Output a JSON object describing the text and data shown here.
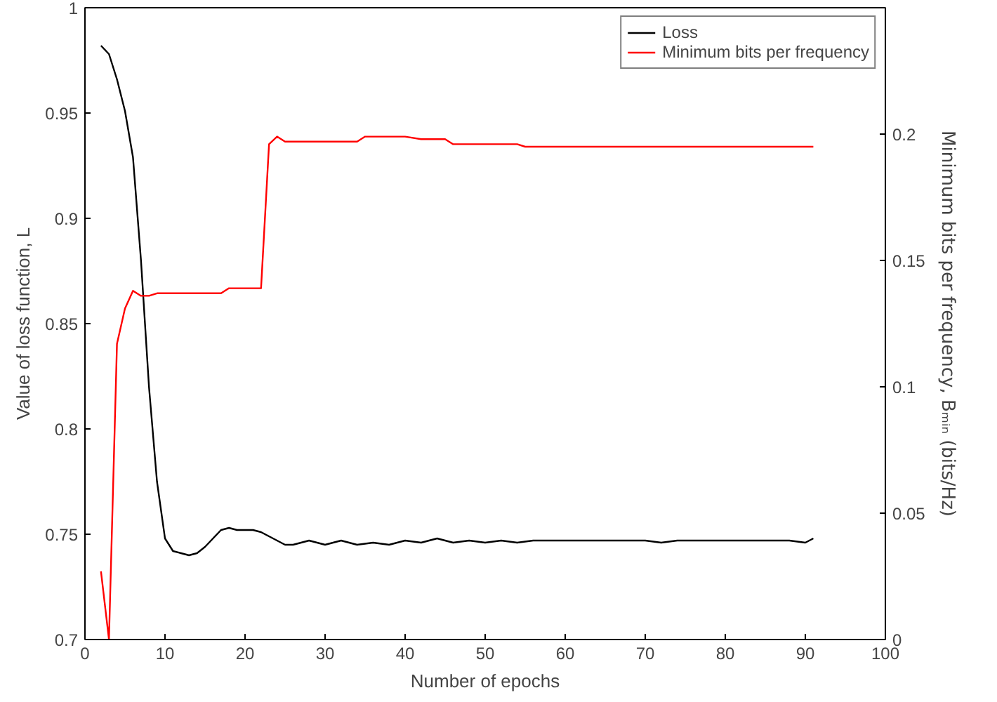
{
  "chart_data": {
    "type": "line",
    "xlabel": "Number of epochs",
    "ylabel": "Value of loss function, L",
    "y2label": "Minimum bits per frequency, Bₘᵢₙ (bits/Hz)",
    "xlim": [
      0,
      100
    ],
    "xticks": [
      0,
      10,
      20,
      30,
      40,
      50,
      60,
      70,
      80,
      90,
      100
    ],
    "ylim": [
      0.7,
      1
    ],
    "yticks": [
      0.7,
      0.75,
      0.8,
      0.85,
      0.9,
      0.95,
      1
    ],
    "y2lim": [
      0,
      0.25
    ],
    "y2ticks": [
      0,
      0.05,
      0.1,
      0.15,
      0.2
    ],
    "legend": "top right",
    "grid": false,
    "series": [
      {
        "name": "Loss",
        "color": "#000000",
        "x": [
          2,
          3,
          4,
          5,
          6,
          7,
          8,
          9,
          10,
          11,
          12,
          13,
          14,
          15,
          16,
          17,
          18,
          19,
          20,
          21,
          22,
          23,
          24,
          25,
          26,
          27,
          28,
          29,
          30,
          32,
          34,
          36,
          38,
          40,
          42,
          44,
          46,
          48,
          50,
          52,
          54,
          56,
          58,
          60,
          62,
          64,
          66,
          68,
          70,
          72,
          74,
          76,
          78,
          80,
          82,
          84,
          86,
          88,
          90,
          91
        ],
        "values": [
          0.982,
          0.978,
          0.966,
          0.951,
          0.929,
          0.88,
          0.82,
          0.775,
          0.748,
          0.742,
          0.741,
          0.74,
          0.741,
          0.744,
          0.748,
          0.752,
          0.753,
          0.752,
          0.752,
          0.752,
          0.751,
          0.749,
          0.747,
          0.745,
          0.745,
          0.746,
          0.747,
          0.746,
          0.745,
          0.747,
          0.745,
          0.746,
          0.745,
          0.747,
          0.746,
          0.748,
          0.746,
          0.747,
          0.746,
          0.747,
          0.746,
          0.747,
          0.747,
          0.747,
          0.747,
          0.747,
          0.747,
          0.747,
          0.747,
          0.746,
          0.747,
          0.747,
          0.747,
          0.747,
          0.747,
          0.747,
          0.747,
          0.747,
          0.746,
          0.748
        ]
      },
      {
        "name": "Minimum bits per frequency",
        "color": "#ff0000",
        "axis": "y2",
        "x": [
          2,
          3,
          4,
          5,
          6,
          7,
          8,
          9,
          12,
          15,
          17,
          18,
          20,
          22,
          23,
          24,
          25,
          26,
          28,
          30,
          32,
          34,
          35,
          38,
          40,
          42,
          44,
          45,
          46,
          48,
          50,
          52,
          54,
          55,
          60,
          70,
          80,
          85,
          88,
          91
        ],
        "values": [
          0.027,
          0.0,
          0.117,
          0.131,
          0.138,
          0.136,
          0.136,
          0.137,
          0.137,
          0.137,
          0.137,
          0.139,
          0.139,
          0.139,
          0.196,
          0.199,
          0.197,
          0.197,
          0.197,
          0.197,
          0.197,
          0.197,
          0.199,
          0.199,
          0.199,
          0.198,
          0.198,
          0.198,
          0.196,
          0.196,
          0.196,
          0.196,
          0.196,
          0.195,
          0.195,
          0.195,
          0.195,
          0.195,
          0.195,
          0.195
        ]
      }
    ]
  }
}
